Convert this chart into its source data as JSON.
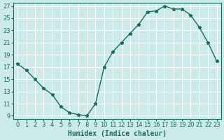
{
  "x": [
    0,
    1,
    2,
    3,
    4,
    5,
    6,
    7,
    8,
    9,
    10,
    11,
    12,
    13,
    14,
    15,
    16,
    17,
    18,
    19,
    20,
    21,
    22,
    23
  ],
  "y": [
    17.5,
    16.5,
    15.0,
    13.5,
    12.5,
    10.5,
    9.5,
    9.2,
    9.0,
    11.0,
    17.0,
    19.5,
    21.0,
    22.5,
    24.0,
    26.0,
    26.2,
    27.0,
    26.5,
    26.5,
    25.5,
    23.5,
    21.0,
    18.0
  ],
  "xlabel": "Humidex (Indice chaleur)",
  "xlim": [
    -0.5,
    23.5
  ],
  "ylim": [
    8.5,
    27.5
  ],
  "yticks": [
    9,
    11,
    13,
    15,
    17,
    19,
    21,
    23,
    25,
    27
  ],
  "xticks": [
    0,
    1,
    2,
    3,
    4,
    5,
    6,
    7,
    8,
    9,
    10,
    11,
    12,
    13,
    14,
    15,
    16,
    17,
    18,
    19,
    20,
    21,
    22,
    23
  ],
  "line_color": "#1a6b5e",
  "marker": "*",
  "bg_color": "#cceae8",
  "grid_color": "#ffffff",
  "label_fontsize": 7,
  "tick_fontsize": 6
}
